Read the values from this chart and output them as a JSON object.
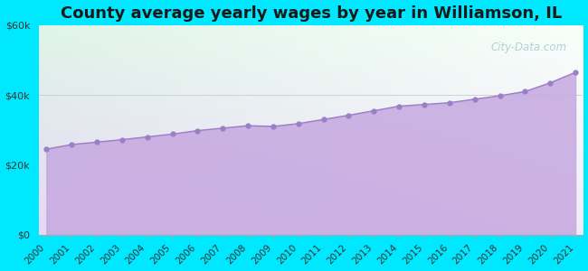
{
  "title": "County average yearly wages by year in Williamson, IL",
  "years": [
    2000,
    2001,
    2002,
    2003,
    2004,
    2005,
    2006,
    2007,
    2008,
    2009,
    2010,
    2011,
    2012,
    2013,
    2014,
    2015,
    2016,
    2017,
    2018,
    2019,
    2020,
    2021
  ],
  "wages": [
    24500,
    25800,
    26500,
    27200,
    28000,
    28800,
    29800,
    30500,
    31200,
    31000,
    31800,
    33000,
    34200,
    35500,
    36800,
    37300,
    37800,
    38800,
    39800,
    41000,
    43500,
    46500
  ],
  "ylim": [
    0,
    60000
  ],
  "yticks": [
    0,
    20000,
    40000,
    60000
  ],
  "ytick_labels": [
    "$0",
    "$20k",
    "$40k",
    "$60k"
  ],
  "fill_color": "#c5a8e0",
  "fill_alpha": 0.85,
  "marker_color": "#9b7fc7",
  "line_color": "#9b7fc7",
  "bg_outer": "#00e8ff",
  "bg_plot_topleft": "#dff5e8",
  "bg_plot_topright": "#f0f8f0",
  "bg_plot_bottom": "#e8d8f5",
  "watermark": "City-Data.com",
  "title_fontsize": 13,
  "tick_fontsize": 8
}
